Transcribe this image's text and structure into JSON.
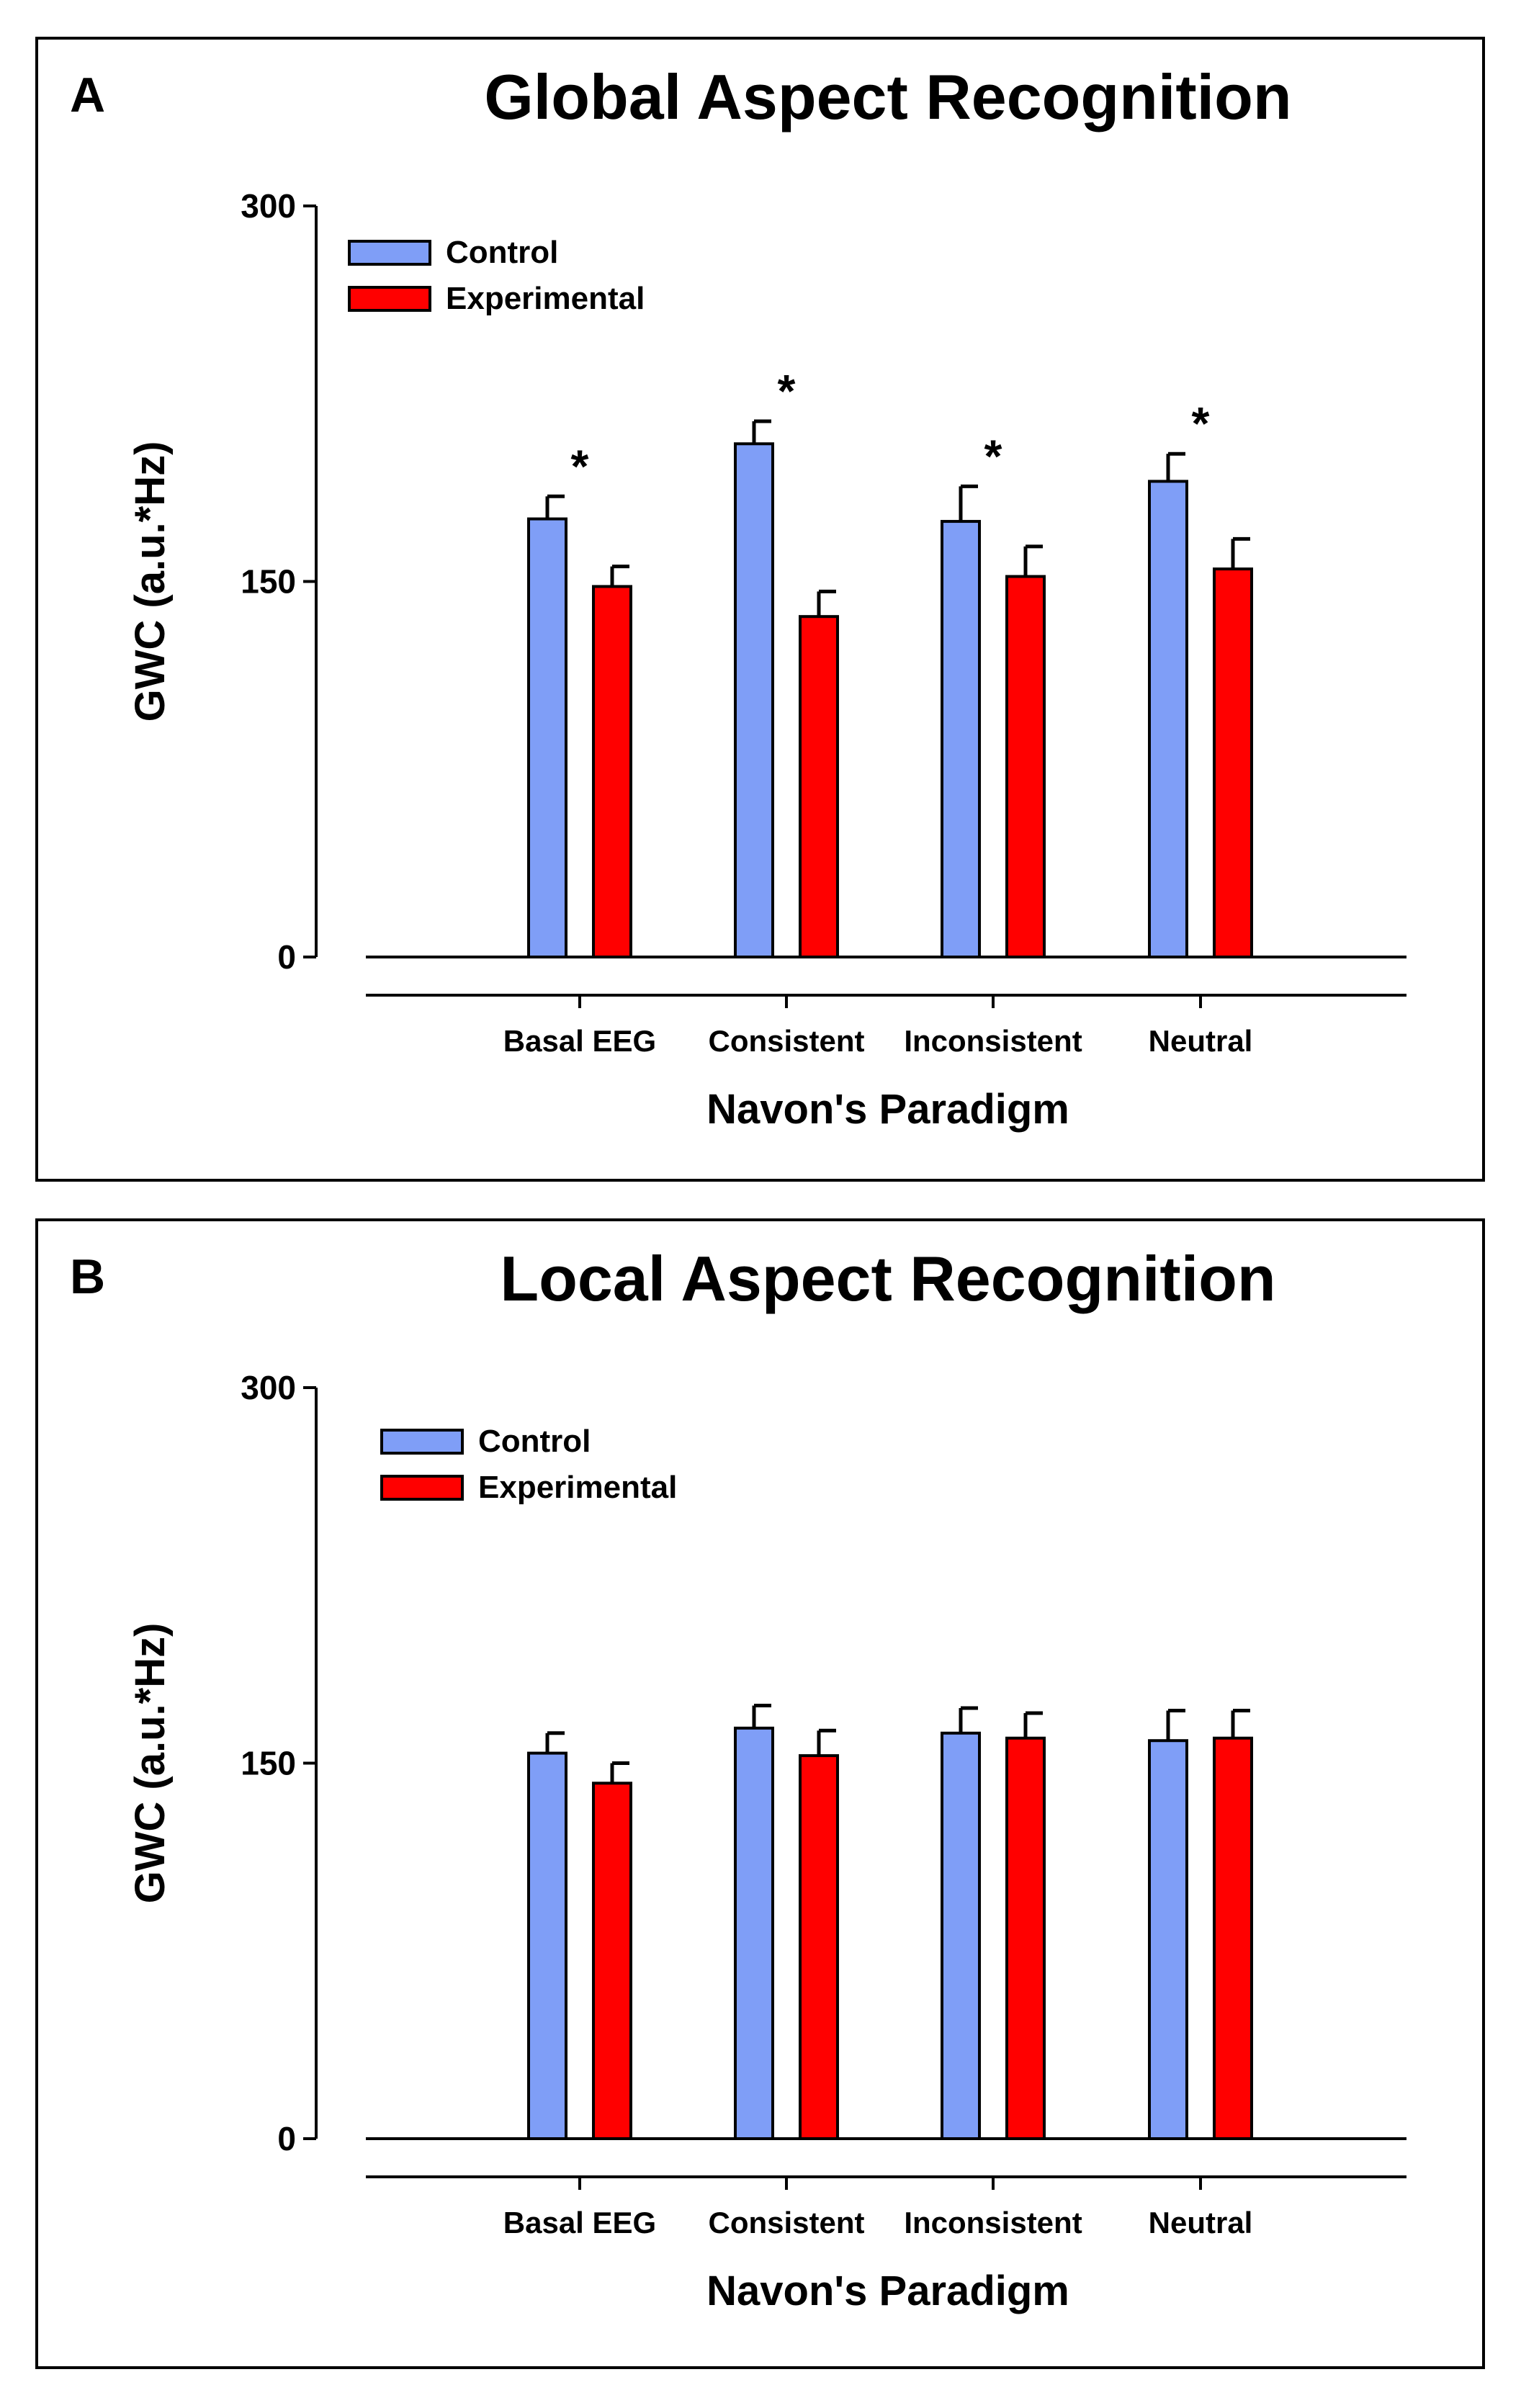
{
  "colors": {
    "control": "#7f9ef7",
    "experimental": "#ff0000",
    "axis": "#000000"
  },
  "chart_data": [
    {
      "type": "bar",
      "panel_letter": "A",
      "title": "Global Aspect Recognition",
      "xlabel": "Navon's Paradigm",
      "ylabel": "GWC (a.u.*Hz)",
      "ylim": [
        0,
        300
      ],
      "yticks": [
        "0",
        "150",
        "300"
      ],
      "categories": [
        "Basal EEG",
        "Consistent",
        "Inconsistent",
        "Neutral"
      ],
      "series": [
        {
          "name": "Control",
          "values": [
            175,
            205,
            174,
            190
          ],
          "errors": [
            9,
            9,
            14,
            11
          ]
        },
        {
          "name": "Experimental",
          "values": [
            148,
            136,
            152,
            155
          ],
          "errors": [
            8,
            10,
            12,
            12
          ]
        }
      ],
      "annotations": [
        "*",
        "*",
        "*",
        "*"
      ],
      "legend": "top-left"
    },
    {
      "type": "bar",
      "panel_letter": "B",
      "title": "Local Aspect Recognition",
      "xlabel": "Navon's Paradigm",
      "ylabel": "GWC (a.u.*Hz)",
      "ylim": [
        0,
        300
      ],
      "yticks": [
        "0",
        "150",
        "300"
      ],
      "categories": [
        "Basal EEG",
        "Consistent",
        "Inconsistent",
        "Neutral"
      ],
      "series": [
        {
          "name": "Control",
          "values": [
            154,
            164,
            162,
            159
          ],
          "errors": [
            8,
            9,
            10,
            12
          ]
        },
        {
          "name": "Experimental",
          "values": [
            142,
            153,
            160,
            160
          ],
          "errors": [
            8,
            10,
            10,
            11
          ]
        }
      ],
      "annotations": [
        "",
        "",
        "",
        ""
      ],
      "legend": "top-left"
    }
  ]
}
